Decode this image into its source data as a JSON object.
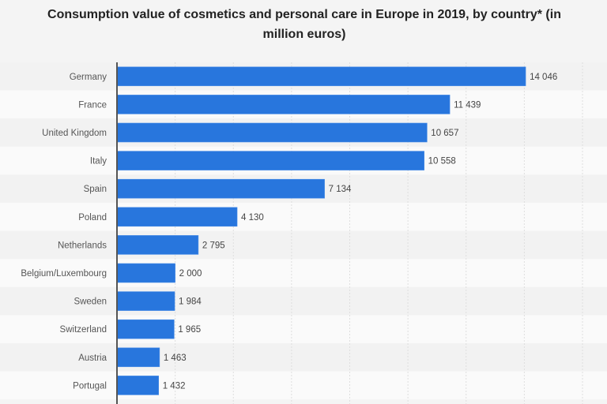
{
  "chart_data": {
    "type": "bar",
    "orientation": "horizontal",
    "title": "Consumption value of cosmetics and personal care in Europe in 2019, by country* (in million euros)",
    "xlabel": "",
    "ylabel": "",
    "categories": [
      "Germany",
      "France",
      "United Kingdom",
      "Italy",
      "Spain",
      "Poland",
      "Netherlands",
      "Belgium/Luxembourg",
      "Sweden",
      "Switzerland",
      "Austria",
      "Portugal"
    ],
    "values": [
      14046,
      11439,
      10657,
      10558,
      7134,
      4130,
      2795,
      2000,
      1984,
      1965,
      1463,
      1432
    ],
    "value_labels": [
      "14 046",
      "11 439",
      "10 657",
      "10 558",
      "7 134",
      "4 130",
      "2 795",
      "2 000",
      "1 984",
      "1 965",
      "1 463",
      "1 432"
    ],
    "xlim": [
      0,
      16000
    ],
    "grid": true,
    "grid_step": 2000,
    "bar_color": "#2876dd",
    "legend": "none"
  }
}
